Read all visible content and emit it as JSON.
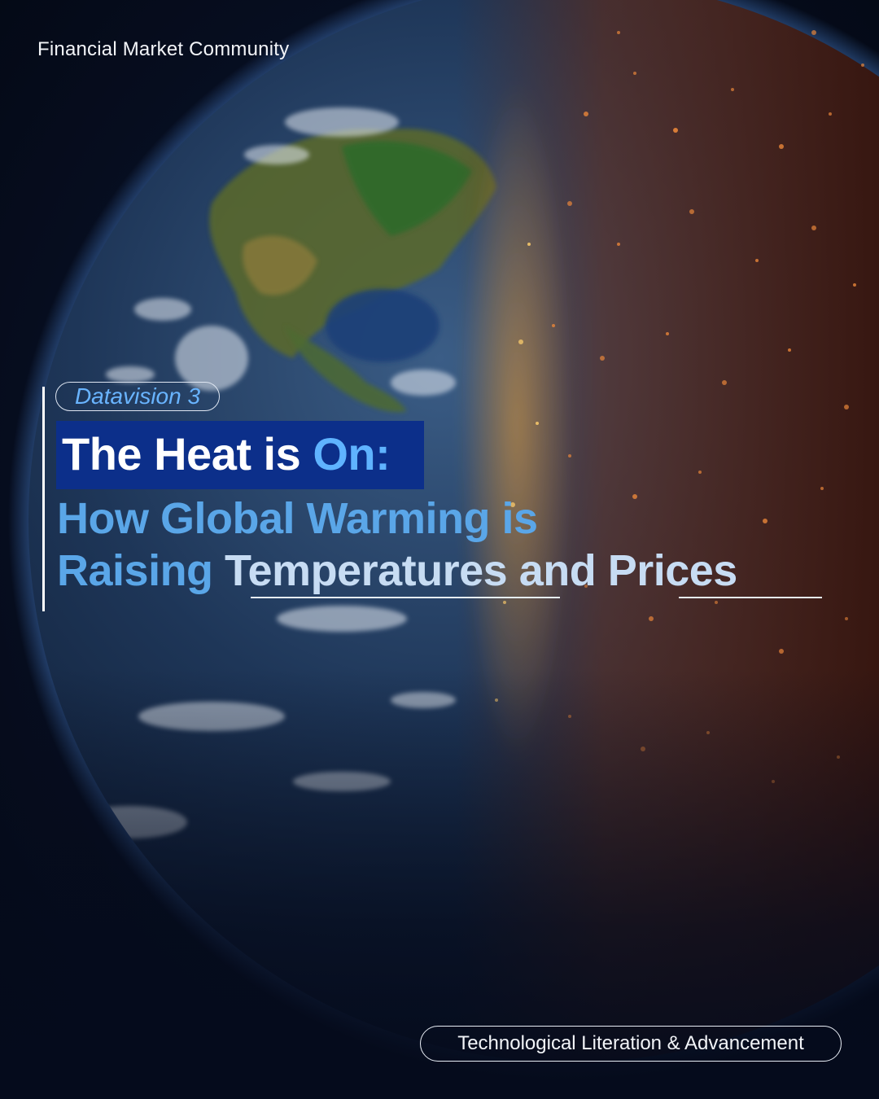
{
  "brand": {
    "name": "Financial Market Community"
  },
  "tag": {
    "label": "Datavision 3"
  },
  "headline": {
    "main": "The Heat is ",
    "accent": "On:",
    "line1": "How Global Warming is",
    "line2_part1": "Raising ",
    "line2_part2": "Temperatures",
    "line2_part3": " and ",
    "line2_part4": "Prices"
  },
  "footer": {
    "label": "Technological Literation & Advancement"
  },
  "colors": {
    "background": "#050b1c",
    "accent_blue": "#5fb3ff",
    "headline_box": "#0c2f8a",
    "heat_orange": "#c8551c"
  }
}
